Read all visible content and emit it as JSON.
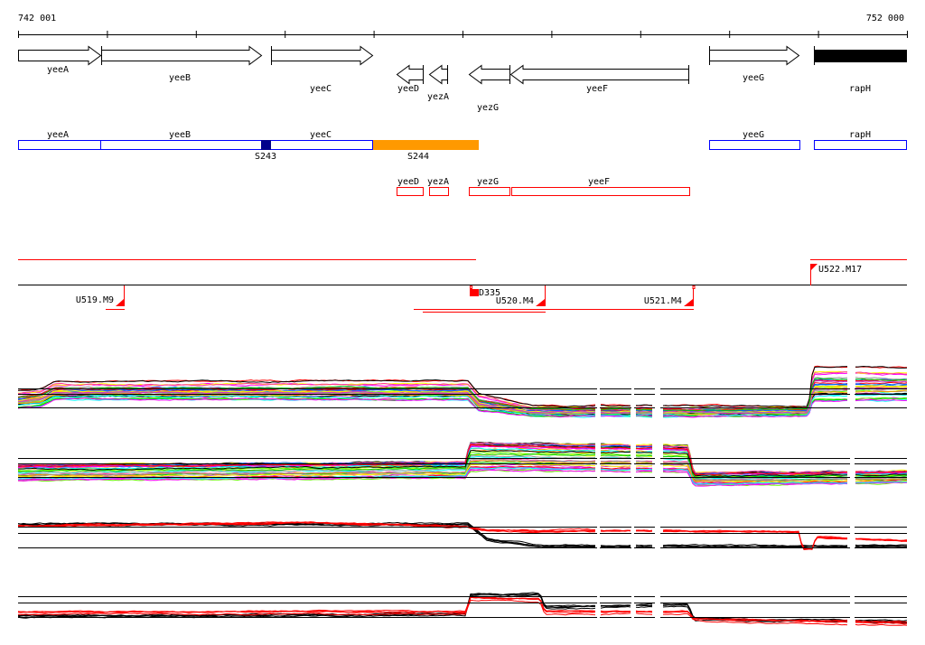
{
  "ruler": {
    "start_label": "742 001",
    "end_label": "752 000"
  },
  "genes": [
    {
      "name": "yeeA",
      "strand": "+"
    },
    {
      "name": "yeeB",
      "strand": "+"
    },
    {
      "name": "yeeC",
      "strand": "+"
    },
    {
      "name": "yeeD",
      "strand": "-"
    },
    {
      "name": "yezA",
      "strand": "-"
    },
    {
      "name": "yezG",
      "strand": "-"
    },
    {
      "name": "yeeF",
      "strand": "-"
    },
    {
      "name": "yeeG",
      "strand": "+"
    },
    {
      "name": "rapH",
      "strand": "+"
    }
  ],
  "operon_track": {
    "blue_labels": [
      "yeeA",
      "yeeB",
      "yeeC",
      "yeeG",
      "rapH"
    ],
    "segments": [
      {
        "label": "S243",
        "color": "#00008b"
      },
      {
        "label": "S244",
        "color": "#ff9900"
      }
    ]
  },
  "red_track": {
    "labels": [
      "yeeD",
      "yezA",
      "yezG",
      "yeeF"
    ]
  },
  "transcription_units": [
    "U519.M9",
    "D335",
    "U520.M4",
    "U521.M4",
    "U522.M17"
  ],
  "colors": {
    "forward_box": "#0000ff",
    "reverse_box": "#ff0000",
    "marker": "#ff0000",
    "segment_dark": "#00008b",
    "segment_orange": "#ff9900"
  },
  "expression_tracks": [
    {
      "type": "multi-condition profiles"
    },
    {
      "type": "multi-condition profiles"
    },
    {
      "type": "black and red profiles",
      "series_colors": [
        "#000000",
        "#ff0000"
      ]
    },
    {
      "type": "black and red profiles",
      "series_colors": [
        "#000000",
        "#ff0000"
      ]
    }
  ]
}
